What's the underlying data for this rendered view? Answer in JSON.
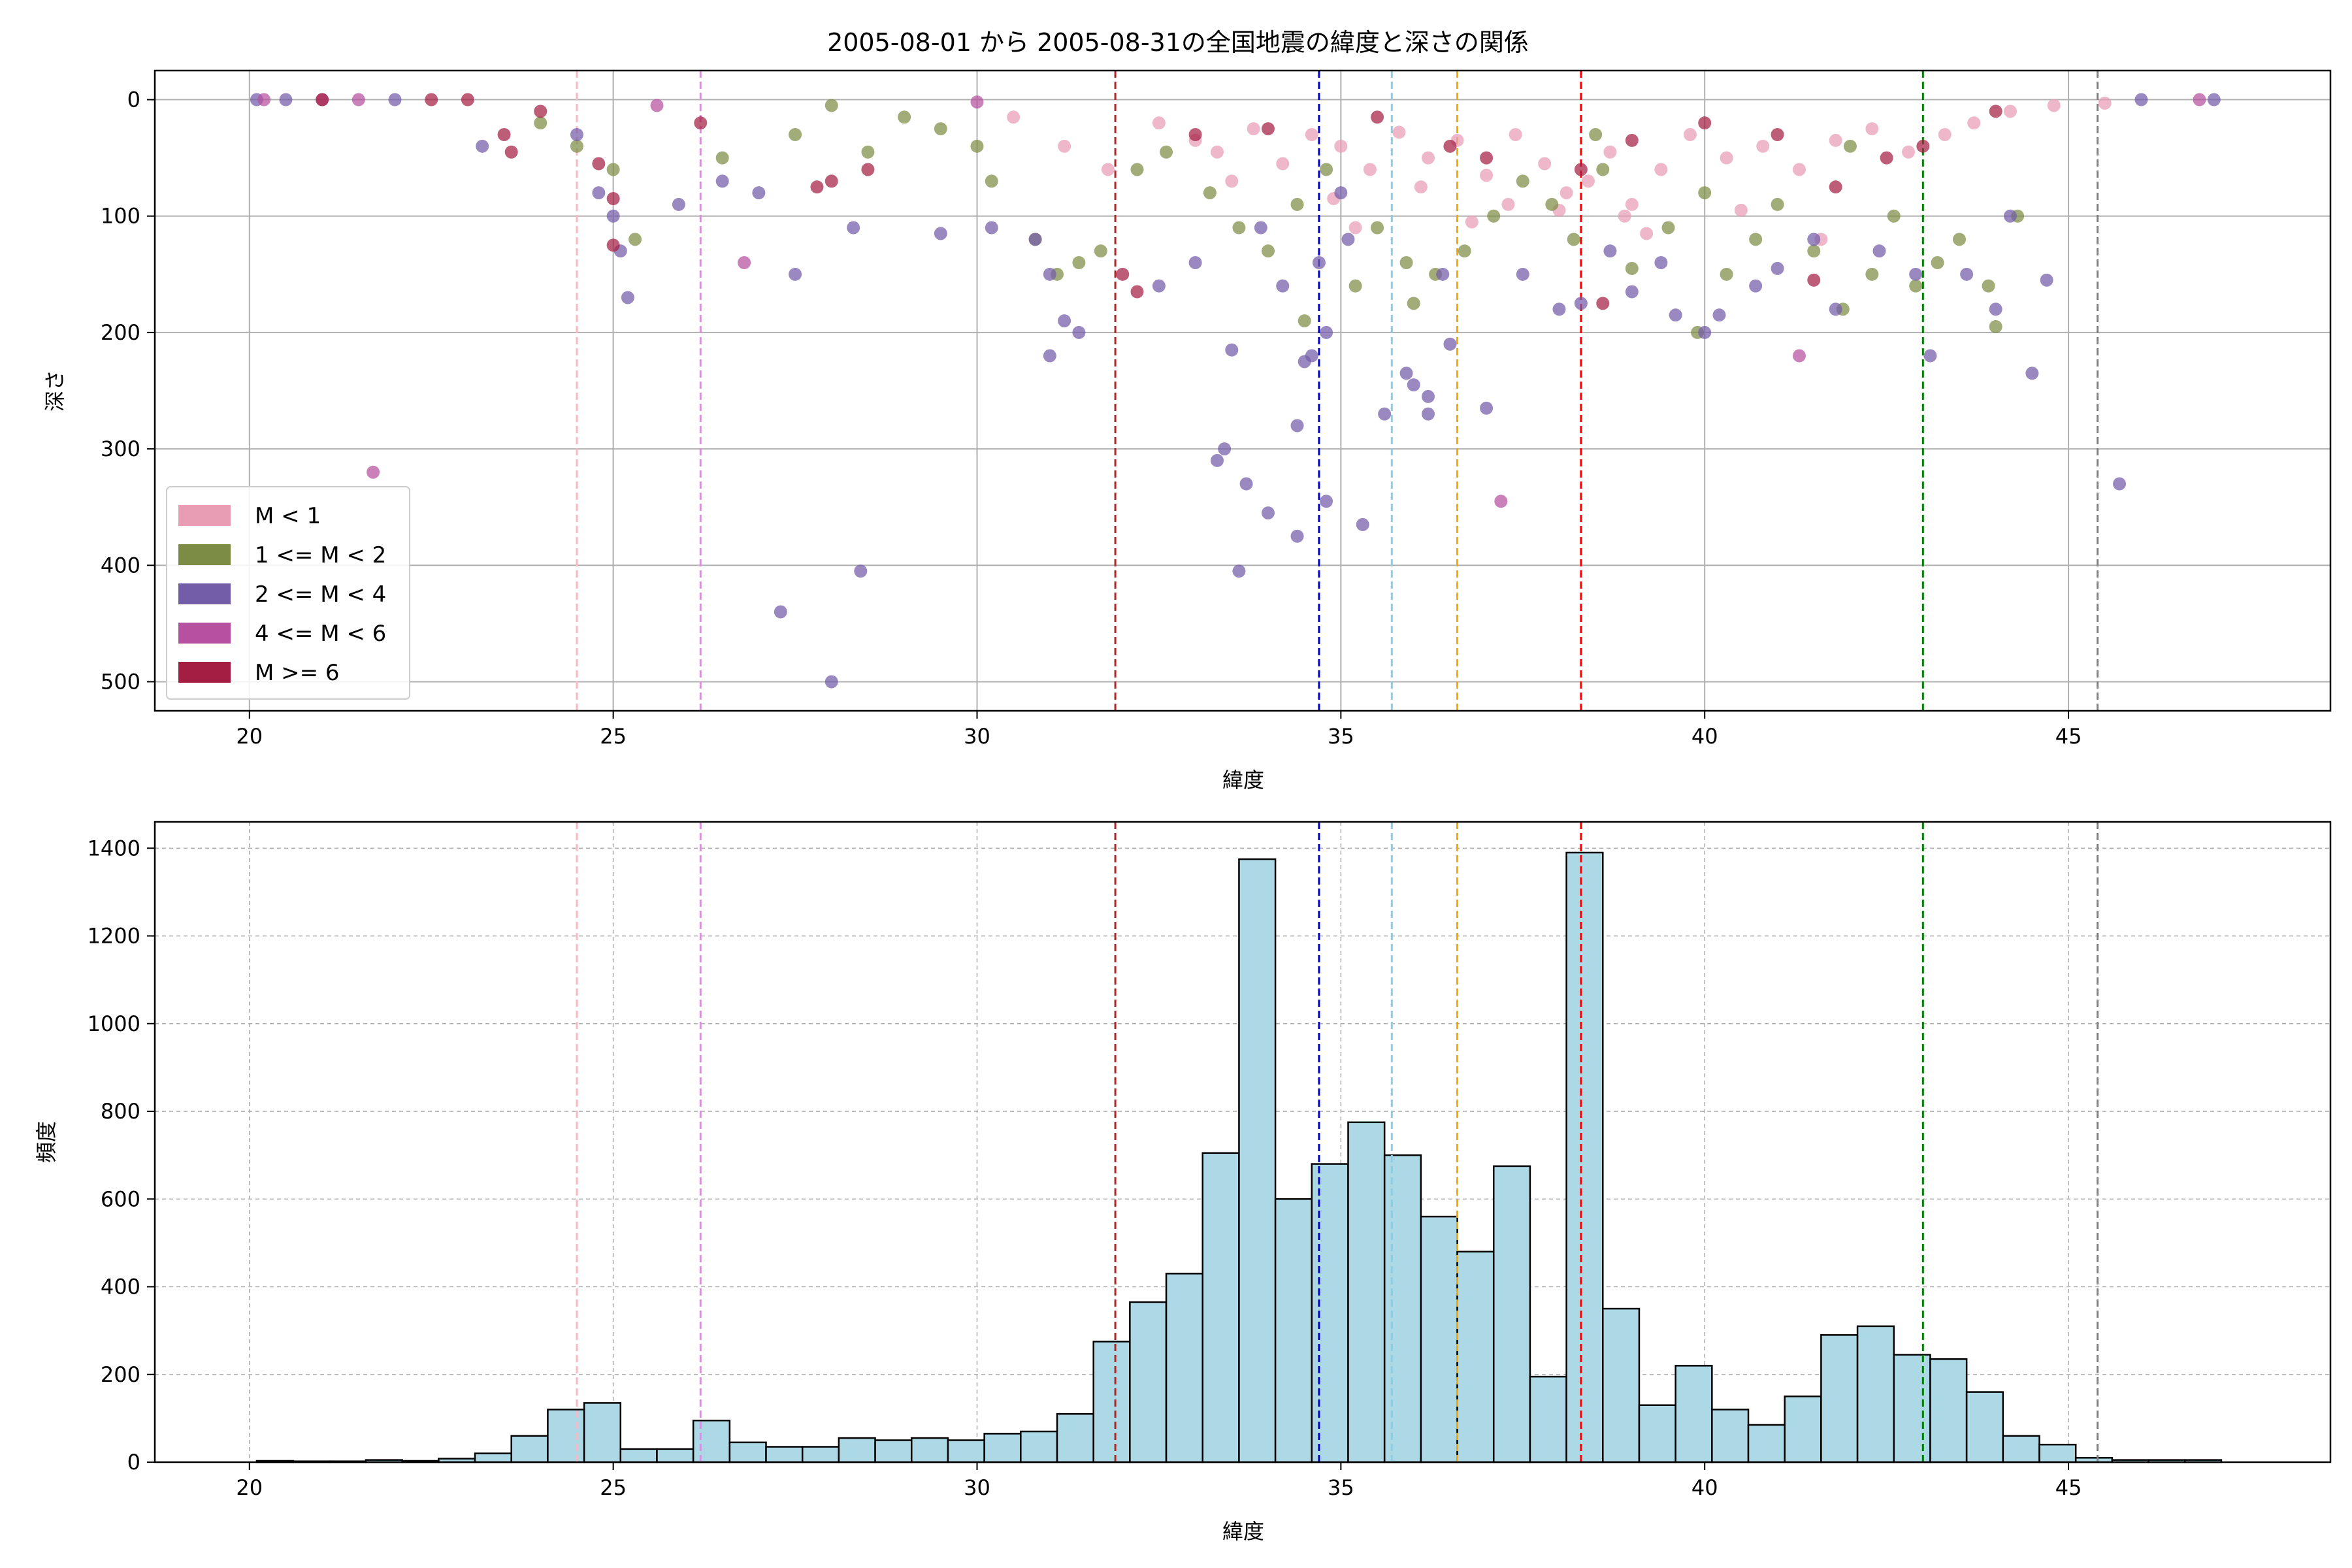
{
  "title": "2005-08-01 から 2005-08-31の全国地震の緯度と深さの関係",
  "chart_data": [
    {
      "type": "scatter",
      "xlabel": "緯度",
      "ylabel": "深さ",
      "xlim": [
        18.7,
        48.6
      ],
      "ylim": [
        525,
        -25
      ],
      "y_inverted": true,
      "xticks": [
        20,
        25,
        30,
        35,
        40,
        45
      ],
      "yticks": [
        0,
        100,
        200,
        300,
        400,
        500
      ],
      "grid": true,
      "legend_position": "lower-left",
      "series": [
        {
          "name": "M < 1",
          "color": "#e89db5",
          "points": [
            [
              32.5,
              20
            ],
            [
              33.0,
              35
            ],
            [
              33.3,
              45
            ],
            [
              33.8,
              25
            ],
            [
              34.2,
              55
            ],
            [
              34.6,
              30
            ],
            [
              35.0,
              40
            ],
            [
              35.4,
              60
            ],
            [
              35.8,
              28
            ],
            [
              36.2,
              50
            ],
            [
              36.6,
              35
            ],
            [
              37.0,
              65
            ],
            [
              37.4,
              30
            ],
            [
              37.8,
              55
            ],
            [
              38.1,
              80
            ],
            [
              38.4,
              70
            ],
            [
              38.7,
              45
            ],
            [
              39.0,
              90
            ],
            [
              39.4,
              60
            ],
            [
              39.8,
              30
            ],
            [
              40.3,
              50
            ],
            [
              40.8,
              40
            ],
            [
              41.3,
              60
            ],
            [
              41.8,
              35
            ],
            [
              42.3,
              25
            ],
            [
              42.8,
              45
            ],
            [
              43.3,
              30
            ],
            [
              43.7,
              20
            ],
            [
              44.2,
              10
            ],
            [
              44.8,
              5
            ],
            [
              45.5,
              3
            ],
            [
              31.8,
              60
            ],
            [
              31.2,
              40
            ],
            [
              30.5,
              15
            ],
            [
              35.2,
              110
            ],
            [
              36.8,
              105
            ],
            [
              38.0,
              95
            ],
            [
              39.2,
              115
            ],
            [
              40.5,
              95
            ],
            [
              41.6,
              120
            ],
            [
              33.5,
              70
            ],
            [
              34.9,
              85
            ],
            [
              36.1,
              75
            ],
            [
              37.3,
              90
            ],
            [
              38.9,
              100
            ]
          ]
        },
        {
          "name": "1 <= M < 2",
          "color": "#7d8c45",
          "points": [
            [
              24.0,
              20
            ],
            [
              24.5,
              40
            ],
            [
              25.0,
              60
            ],
            [
              25.3,
              120
            ],
            [
              26.5,
              50
            ],
            [
              27.5,
              30
            ],
            [
              28.5,
              45
            ],
            [
              29.5,
              25
            ],
            [
              30.2,
              70
            ],
            [
              30.8,
              120
            ],
            [
              31.1,
              150
            ],
            [
              31.4,
              140
            ],
            [
              31.7,
              130
            ],
            [
              32.2,
              60
            ],
            [
              32.6,
              45
            ],
            [
              33.2,
              80
            ],
            [
              33.6,
              110
            ],
            [
              34.0,
              130
            ],
            [
              34.4,
              90
            ],
            [
              34.8,
              60
            ],
            [
              35.2,
              160
            ],
            [
              35.5,
              110
            ],
            [
              35.9,
              140
            ],
            [
              36.3,
              150
            ],
            [
              36.7,
              130
            ],
            [
              37.1,
              100
            ],
            [
              37.5,
              70
            ],
            [
              37.9,
              90
            ],
            [
              38.2,
              120
            ],
            [
              38.6,
              60
            ],
            [
              39.0,
              145
            ],
            [
              39.5,
              110
            ],
            [
              39.9,
              200
            ],
            [
              40.3,
              150
            ],
            [
              40.7,
              120
            ],
            [
              41.0,
              90
            ],
            [
              41.5,
              130
            ],
            [
              41.9,
              180
            ],
            [
              42.3,
              150
            ],
            [
              42.6,
              100
            ],
            [
              42.9,
              160
            ],
            [
              43.2,
              140
            ],
            [
              43.5,
              120
            ],
            [
              43.9,
              160
            ],
            [
              44.0,
              195
            ],
            [
              44.3,
              100
            ],
            [
              30.0,
              40
            ],
            [
              29.0,
              15
            ],
            [
              28.0,
              5
            ],
            [
              34.5,
              190
            ],
            [
              36.0,
              175
            ],
            [
              38.5,
              30
            ],
            [
              40.0,
              80
            ],
            [
              42.0,
              40
            ]
          ]
        },
        {
          "name": "2 <= M < 4",
          "color": "#735ca8",
          "points": [
            [
              20.1,
              0
            ],
            [
              20.5,
              0
            ],
            [
              22.0,
              0
            ],
            [
              23.2,
              40
            ],
            [
              24.5,
              30
            ],
            [
              24.8,
              80
            ],
            [
              25.0,
              100
            ],
            [
              25.1,
              130
            ],
            [
              25.2,
              170
            ],
            [
              25.9,
              90
            ],
            [
              26.5,
              70
            ],
            [
              27.0,
              80
            ],
            [
              27.3,
              440
            ],
            [
              27.5,
              150
            ],
            [
              28.0,
              500
            ],
            [
              28.3,
              110
            ],
            [
              28.4,
              405
            ],
            [
              29.5,
              115
            ],
            [
              30.2,
              110
            ],
            [
              30.8,
              120
            ],
            [
              31.0,
              150
            ],
            [
              31.2,
              190
            ],
            [
              31.4,
              200
            ],
            [
              31.0,
              220
            ],
            [
              32.5,
              160
            ],
            [
              33.0,
              140
            ],
            [
              33.3,
              310
            ],
            [
              33.4,
              300
            ],
            [
              33.5,
              215
            ],
            [
              33.6,
              405
            ],
            [
              33.7,
              330
            ],
            [
              34.0,
              355
            ],
            [
              34.2,
              160
            ],
            [
              34.4,
              280
            ],
            [
              34.4,
              375
            ],
            [
              34.5,
              225
            ],
            [
              34.6,
              220
            ],
            [
              34.7,
              140
            ],
            [
              34.8,
              200
            ],
            [
              34.8,
              345
            ],
            [
              35.0,
              80
            ],
            [
              35.3,
              365
            ],
            [
              35.6,
              270
            ],
            [
              35.9,
              235
            ],
            [
              36.0,
              245
            ],
            [
              36.2,
              255
            ],
            [
              36.2,
              270
            ],
            [
              36.5,
              210
            ],
            [
              37.0,
              265
            ],
            [
              37.5,
              150
            ],
            [
              38.0,
              180
            ],
            [
              38.3,
              175
            ],
            [
              38.7,
              130
            ],
            [
              39.0,
              165
            ],
            [
              39.4,
              140
            ],
            [
              39.6,
              185
            ],
            [
              40.0,
              200
            ],
            [
              40.2,
              185
            ],
            [
              40.7,
              160
            ],
            [
              41.0,
              145
            ],
            [
              41.5,
              120
            ],
            [
              41.8,
              180
            ],
            [
              42.4,
              130
            ],
            [
              42.9,
              150
            ],
            [
              43.1,
              220
            ],
            [
              43.6,
              150
            ],
            [
              44.0,
              180
            ],
            [
              44.2,
              100
            ],
            [
              44.5,
              235
            ],
            [
              44.7,
              155
            ],
            [
              45.7,
              330
            ],
            [
              46.0,
              0
            ],
            [
              47.0,
              0
            ],
            [
              36.4,
              150
            ],
            [
              35.1,
              120
            ],
            [
              33.9,
              110
            ]
          ]
        },
        {
          "name": "4 <= M < 6",
          "color": "#b6509f",
          "points": [
            [
              20.2,
              0
            ],
            [
              21.5,
              0
            ],
            [
              21.7,
              320
            ],
            [
              26.8,
              140
            ],
            [
              37.2,
              345
            ],
            [
              41.3,
              220
            ],
            [
              46.8,
              0
            ],
            [
              21.0,
              0
            ],
            [
              25.6,
              5
            ],
            [
              30.0,
              2
            ]
          ]
        },
        {
          "name": "M >= 6",
          "color": "#a41e43",
          "points": [
            [
              21.0,
              0
            ],
            [
              22.5,
              0
            ],
            [
              23.0,
              0
            ],
            [
              23.5,
              30
            ],
            [
              23.6,
              45
            ],
            [
              24.0,
              10
            ],
            [
              24.8,
              55
            ],
            [
              25.0,
              125
            ],
            [
              25.0,
              85
            ],
            [
              26.2,
              20
            ],
            [
              27.8,
              75
            ],
            [
              28.0,
              70
            ],
            [
              28.5,
              60
            ],
            [
              32.0,
              150
            ],
            [
              32.2,
              165
            ],
            [
              33.0,
              30
            ],
            [
              34.0,
              25
            ],
            [
              35.5,
              15
            ],
            [
              36.5,
              40
            ],
            [
              37.0,
              50
            ],
            [
              38.3,
              60
            ],
            [
              38.6,
              175
            ],
            [
              39.0,
              35
            ],
            [
              40.0,
              20
            ],
            [
              41.0,
              30
            ],
            [
              41.5,
              155
            ],
            [
              41.8,
              75
            ],
            [
              42.5,
              50
            ],
            [
              43.0,
              40
            ],
            [
              44.0,
              10
            ]
          ]
        }
      ],
      "vlines": [
        {
          "x": 24.5,
          "color": "#ffb6c1"
        },
        {
          "x": 26.2,
          "color": "#ee82ee"
        },
        {
          "x": 31.9,
          "color": "#a52a2a"
        },
        {
          "x": 34.7,
          "color": "#0000cd"
        },
        {
          "x": 35.7,
          "color": "#87ceeb"
        },
        {
          "x": 36.6,
          "color": "#ffa500"
        },
        {
          "x": 38.3,
          "color": "#ff0000"
        },
        {
          "x": 43.0,
          "color": "#008000"
        },
        {
          "x": 45.4,
          "color": "#808080"
        }
      ]
    },
    {
      "type": "bar",
      "subtype": "histogram",
      "xlabel": "緯度",
      "ylabel": "頻度",
      "xlim": [
        18.7,
        48.6
      ],
      "ylim": [
        0,
        1460
      ],
      "xticks": [
        20,
        25,
        30,
        35,
        40,
        45
      ],
      "yticks": [
        0,
        200,
        400,
        600,
        800,
        1000,
        1200,
        1400
      ],
      "grid": true,
      "bar_color": "#add8e6",
      "bar_edge": "#000000",
      "bin_start": 20.1,
      "bin_width": 0.5,
      "values": [
        3,
        2,
        2,
        5,
        3,
        8,
        20,
        60,
        120,
        135,
        30,
        30,
        95,
        45,
        35,
        35,
        55,
        50,
        55,
        50,
        65,
        70,
        110,
        275,
        365,
        430,
        705,
        1375,
        600,
        680,
        775,
        700,
        560,
        480,
        675,
        195,
        1390,
        350,
        130,
        220,
        120,
        85,
        150,
        290,
        310,
        245,
        235,
        160,
        60,
        40,
        10,
        5,
        5,
        5
      ],
      "vlines": [
        {
          "x": 24.5,
          "color": "#ffb6c1"
        },
        {
          "x": 26.2,
          "color": "#ee82ee"
        },
        {
          "x": 31.9,
          "color": "#a52a2a"
        },
        {
          "x": 34.7,
          "color": "#0000cd"
        },
        {
          "x": 35.7,
          "color": "#87ceeb"
        },
        {
          "x": 36.6,
          "color": "#ffa500"
        },
        {
          "x": 38.3,
          "color": "#ff0000"
        },
        {
          "x": 43.0,
          "color": "#008000"
        },
        {
          "x": 45.4,
          "color": "#808080"
        }
      ]
    }
  ]
}
